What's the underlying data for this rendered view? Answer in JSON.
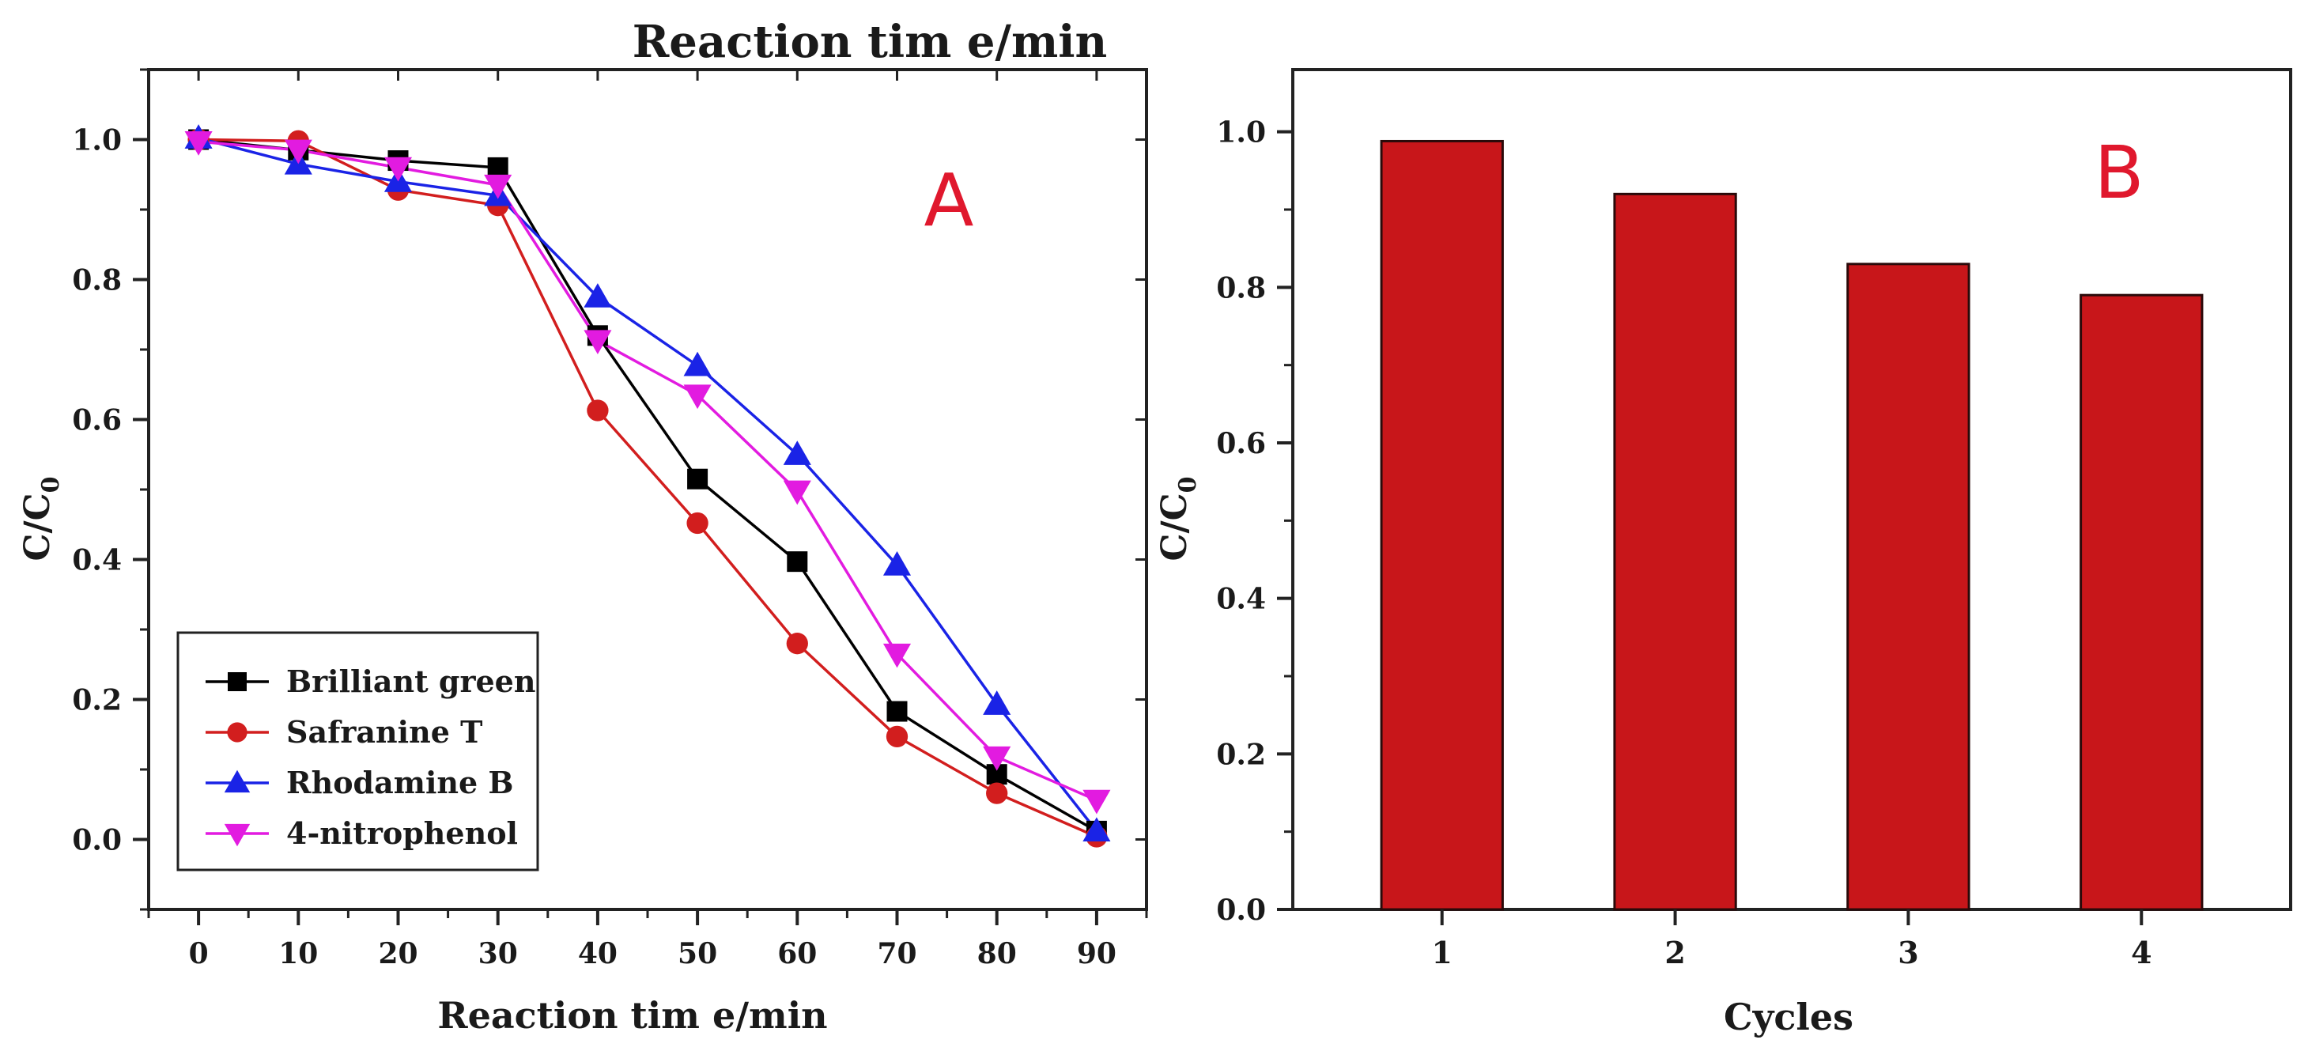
{
  "figure_top_title": "Reaction tim e/min",
  "chart_data": [
    {
      "type": "line",
      "panel_label": "A",
      "xlabel": "Reaction tim e/min",
      "ylabel": "C/C",
      "ylabel_subscript": "0",
      "xlim": [
        -5,
        95
      ],
      "ylim": [
        -0.1,
        1.1
      ],
      "x_ticks": [
        0,
        10,
        20,
        30,
        40,
        50,
        60,
        70,
        80,
        90
      ],
      "x_tick_labels": [
        "0",
        "10",
        "20",
        "30",
        "40",
        "50",
        "60",
        "70",
        "80",
        "90"
      ],
      "y_ticks": [
        0.0,
        0.2,
        0.4,
        0.6,
        0.8,
        1.0
      ],
      "y_tick_labels": [
        "0.0",
        "0.2",
        "0.4",
        "0.6",
        "0.8",
        "1.0"
      ],
      "legend_position": "bottom-left",
      "x": [
        0,
        10,
        20,
        30,
        40,
        50,
        60,
        70,
        80,
        90
      ],
      "series": [
        {
          "name": "Brilliant green",
          "color": "#000000",
          "marker": "square",
          "values": [
            1.0,
            0.985,
            0.97,
            0.96,
            0.72,
            0.515,
            0.397,
            0.183,
            0.093,
            0.012
          ]
        },
        {
          "name": "Safranine T",
          "color": "#d21e1e",
          "marker": "circle",
          "values": [
            1.0,
            0.998,
            0.928,
            0.906,
            0.613,
            0.452,
            0.28,
            0.147,
            0.066,
            0.004
          ]
        },
        {
          "name": "Rhodamine B",
          "color": "#1a23e6",
          "marker": "triangle-up",
          "values": [
            1.002,
            0.965,
            0.94,
            0.92,
            0.775,
            0.677,
            0.55,
            0.392,
            0.193,
            0.012
          ]
        },
        {
          "name": "4-nitrophenol",
          "color": "#e21be0",
          "marker": "triangle-down",
          "values": [
            0.997,
            0.985,
            0.96,
            0.935,
            0.713,
            0.635,
            0.498,
            0.265,
            0.118,
            0.056
          ]
        }
      ]
    },
    {
      "type": "bar",
      "panel_label": "B",
      "xlabel": "Cycles",
      "ylabel": "C/C",
      "ylabel_subscript": "0",
      "categories": [
        "1",
        "2",
        "3",
        "4"
      ],
      "values": [
        0.988,
        0.92,
        0.83,
        0.79
      ],
      "ylim": [
        0.0,
        1.08
      ],
      "y_ticks": [
        0.0,
        0.2,
        0.4,
        0.6,
        0.8,
        1.0
      ],
      "y_tick_labels": [
        "0.0",
        "0.2",
        "0.4",
        "0.6",
        "0.8",
        "1.0"
      ],
      "bar_color": "#c8161a"
    }
  ]
}
